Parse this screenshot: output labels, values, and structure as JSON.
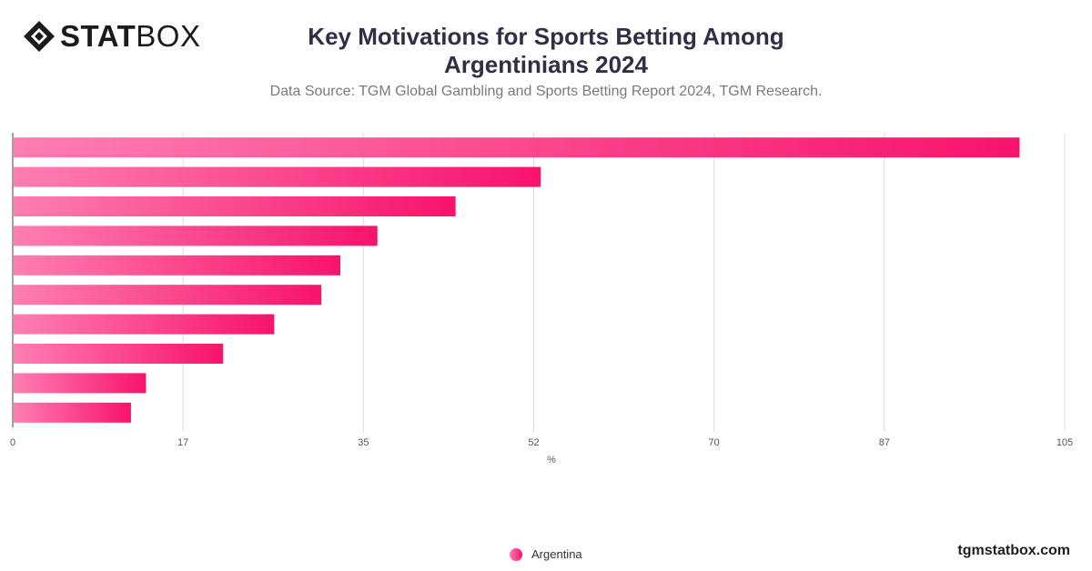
{
  "brand": {
    "logo_bold": "STAT",
    "logo_thin": "BOX",
    "watermark": "tgmstatbox.com"
  },
  "title": "Key Motivations for Sports Betting Among Argentinians 2024",
  "subtitle": "Data Source: TGM Global Gambling and Sports Betting Report 2024, TGM Research.",
  "colors": {
    "bar_start": "#ff7eb3",
    "bar_end": "#f7136b",
    "grid": "#dcdcdc",
    "axis": "#444444"
  },
  "chart_data": {
    "type": "bar",
    "orientation": "horizontal",
    "categories": [
      "",
      "",
      "",
      "",
      "",
      "",
      "",
      "",
      "",
      ""
    ],
    "series": [
      {
        "name": "Argentina",
        "values": [
          100.5,
          52.7,
          44.2,
          36.4,
          32.7,
          30.8,
          26.1,
          21.0,
          13.3,
          11.8
        ]
      }
    ],
    "xlabel": "%",
    "ylabel": "",
    "xlim": [
      0,
      105
    ],
    "xticks": [
      0,
      17,
      35,
      52,
      70,
      87,
      105
    ],
    "grid": true,
    "legend": "bottom"
  }
}
